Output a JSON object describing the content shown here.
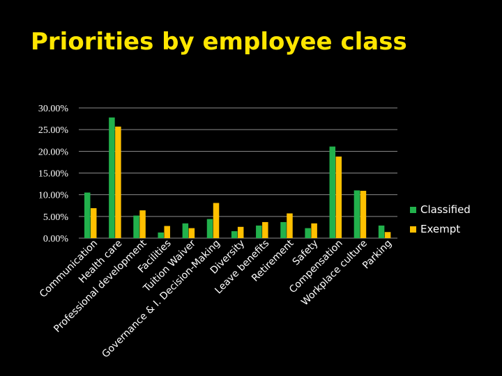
{
  "slide": {
    "title": "Priorities by employee class"
  },
  "colors": {
    "classified": "#22b14c",
    "exempt": "#ffc000",
    "background": "#000000",
    "title": "#ffe600"
  },
  "chart_data": {
    "type": "bar",
    "title": "",
    "xlabel": "",
    "ylabel": "",
    "ylim": [
      0,
      0.3
    ],
    "yticks": [
      "0.00%",
      "5.00%",
      "10.00%",
      "15.00%",
      "20.00%",
      "25.00%",
      "30.00%"
    ],
    "grid": true,
    "legend_position": "right",
    "categories": [
      "Communication",
      "Health care",
      "Professional development",
      "Facilities",
      "Tuition Waiver",
      "Governance & I. Decision-Making",
      "Diversity",
      "Leave benefits",
      "Retirement",
      "Safety",
      "Compensation",
      "Workplace culture",
      "Parking"
    ],
    "series": [
      {
        "name": "Classified",
        "color": "#22b14c",
        "values": [
          0.105,
          0.278,
          0.052,
          0.013,
          0.034,
          0.044,
          0.016,
          0.029,
          0.037,
          0.023,
          0.211,
          0.11,
          0.029
        ]
      },
      {
        "name": "Exempt",
        "color": "#ffc000",
        "values": [
          0.069,
          0.257,
          0.064,
          0.028,
          0.023,
          0.081,
          0.026,
          0.037,
          0.057,
          0.034,
          0.188,
          0.109,
          0.014
        ]
      }
    ]
  }
}
